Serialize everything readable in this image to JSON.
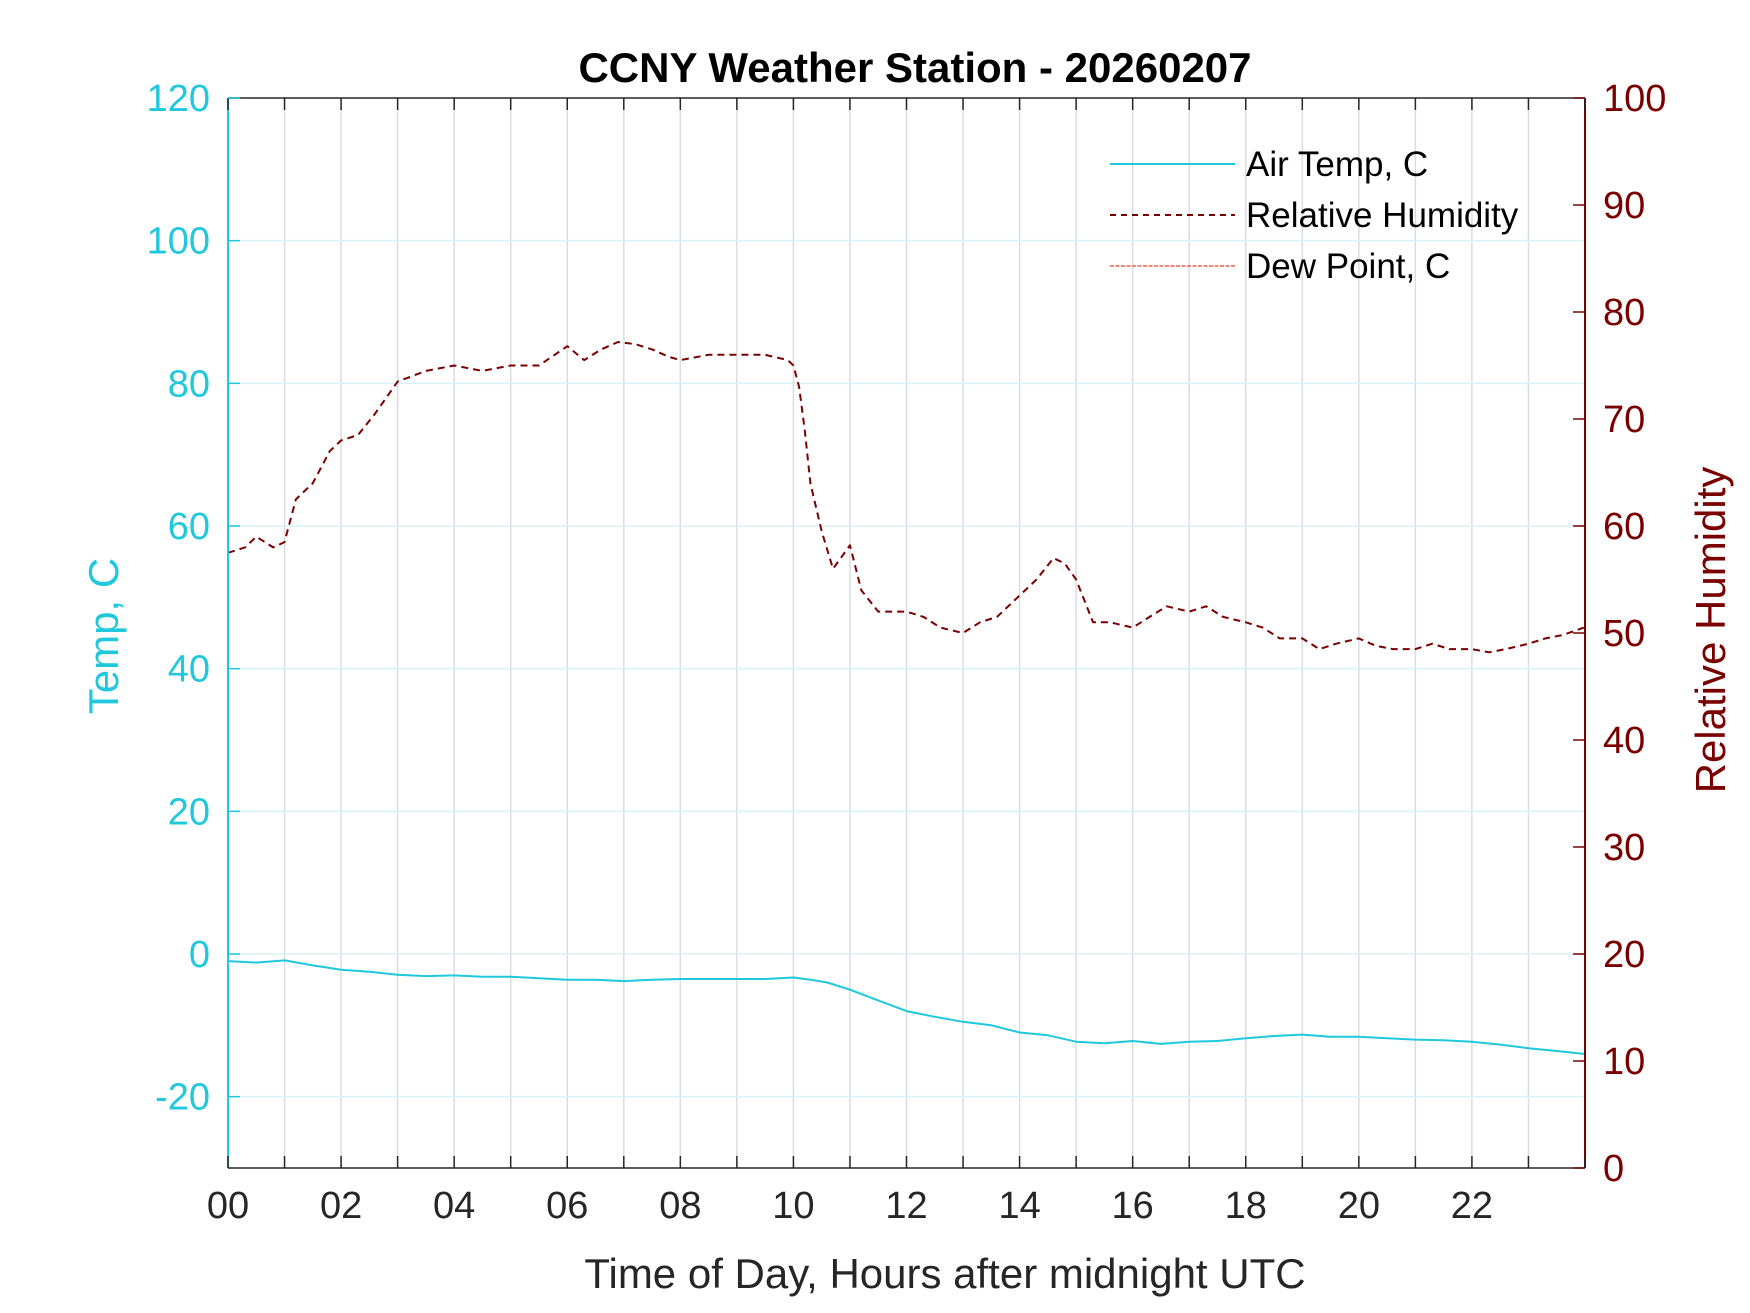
{
  "chart_data": {
    "type": "line",
    "title": "CCNY Weather Station - 20260207",
    "xlabel": "Time of Day, Hours after midnight UTC",
    "ylabel_left": "Temp, C",
    "ylabel_right": "Relative Humidity",
    "xlim": [
      0,
      24
    ],
    "ylim_left": [
      -30,
      120
    ],
    "ylim_right": [
      0,
      100
    ],
    "x_ticks": [
      0,
      2,
      4,
      6,
      8,
      10,
      12,
      14,
      16,
      18,
      20,
      22
    ],
    "x_tick_labels": [
      "00",
      "02",
      "04",
      "06",
      "08",
      "10",
      "12",
      "14",
      "16",
      "18",
      "20",
      "22"
    ],
    "y_left_ticks": [
      -20,
      0,
      20,
      40,
      60,
      80,
      100,
      120
    ],
    "y_right_ticks": [
      0,
      10,
      20,
      30,
      40,
      50,
      60,
      70,
      80,
      90,
      100
    ],
    "grid": true,
    "legend_position": "top-right",
    "colors": {
      "temp": "#1fc8dc",
      "rh": "#7a0000",
      "dew": "#e8624f",
      "grid_vertical": "#d9dde3",
      "grid_horizontal": "#d8f2f7"
    },
    "series": [
      {
        "name": "Air Temp, C",
        "axis": "left",
        "style": "solid",
        "x": [
          0,
          0.5,
          1.0,
          1.5,
          2.0,
          2.5,
          3.0,
          3.5,
          4.0,
          4.5,
          5.0,
          5.5,
          6.0,
          6.5,
          7.0,
          7.5,
          8.0,
          8.5,
          9.0,
          9.5,
          10.0,
          10.3,
          10.6,
          11.0,
          11.5,
          12.0,
          12.5,
          13.0,
          13.5,
          14.0,
          14.5,
          15.0,
          15.5,
          16.0,
          16.5,
          17.0,
          17.5,
          18.0,
          18.5,
          19.0,
          19.5,
          20.0,
          20.5,
          21.0,
          21.5,
          22.0,
          22.5,
          23.0,
          23.5,
          23.98
        ],
        "values": [
          -1.0,
          -1.2,
          -0.9,
          -1.6,
          -2.2,
          -2.5,
          -2.9,
          -3.1,
          -3.0,
          -3.2,
          -3.2,
          -3.4,
          -3.6,
          -3.6,
          -3.8,
          -3.6,
          -3.5,
          -3.5,
          -3.5,
          -3.5,
          -3.3,
          -3.6,
          -4.0,
          -5.0,
          -6.5,
          -8.0,
          -8.8,
          -9.5,
          -10.0,
          -11.0,
          -11.4,
          -12.3,
          -12.5,
          -12.2,
          -12.6,
          -12.3,
          -12.2,
          -11.8,
          -11.5,
          -11.3,
          -11.6,
          -11.6,
          -11.8,
          -12.0,
          -12.1,
          -12.3,
          -12.7,
          -13.2,
          -13.6,
          -14.0
        ]
      },
      {
        "name": "Relative Humidity",
        "axis": "right",
        "style": "dashed",
        "x": [
          0,
          0.3,
          0.5,
          0.8,
          1.0,
          1.2,
          1.5,
          1.8,
          2.0,
          2.3,
          2.6,
          3.0,
          3.5,
          4.0,
          4.5,
          5.0,
          5.5,
          6.0,
          6.3,
          6.6,
          6.9,
          7.2,
          7.5,
          7.8,
          8.0,
          8.5,
          9.0,
          9.5,
          9.9,
          10.0,
          10.1,
          10.2,
          10.3,
          10.5,
          10.7,
          11.0,
          11.2,
          11.5,
          12.0,
          12.3,
          12.6,
          13.0,
          13.3,
          13.6,
          14.0,
          14.3,
          14.6,
          14.8,
          15.0,
          15.3,
          15.6,
          16.0,
          16.3,
          16.6,
          17.0,
          17.3,
          17.6,
          18.0,
          18.3,
          18.6,
          19.0,
          19.3,
          19.6,
          20.0,
          20.3,
          20.6,
          21.0,
          21.3,
          21.6,
          22.0,
          22.3,
          22.6,
          23.0,
          23.3,
          23.6,
          23.98
        ],
        "values": [
          57.5,
          58.0,
          59.0,
          58.0,
          58.5,
          62.5,
          64.0,
          67.0,
          68.0,
          68.5,
          70.5,
          73.5,
          74.5,
          75.0,
          74.5,
          75.0,
          75.0,
          76.8,
          75.5,
          76.5,
          77.2,
          77.0,
          76.5,
          75.8,
          75.5,
          76.0,
          76.0,
          76.0,
          75.5,
          75.0,
          73.0,
          69.0,
          64.0,
          59.5,
          56.0,
          58.2,
          54.0,
          52.0,
          52.0,
          51.5,
          50.5,
          50.0,
          51.0,
          51.5,
          53.5,
          55.0,
          57.0,
          56.5,
          55.0,
          51.0,
          51.0,
          50.5,
          51.5,
          52.5,
          52.0,
          52.5,
          51.5,
          51.0,
          50.5,
          49.5,
          49.5,
          48.5,
          49.0,
          49.5,
          48.8,
          48.5,
          48.5,
          49.0,
          48.5,
          48.5,
          48.2,
          48.5,
          49.0,
          49.5,
          49.8,
          50.5
        ]
      },
      {
        "name": "Dew Point, C",
        "axis": "left",
        "style": "dashdot",
        "x": [],
        "values": []
      }
    ]
  }
}
